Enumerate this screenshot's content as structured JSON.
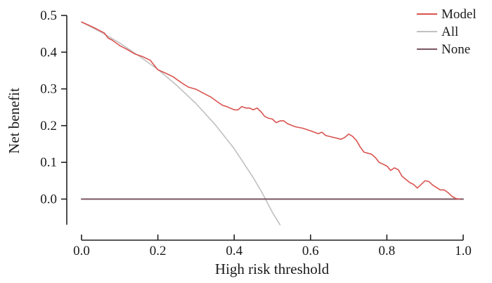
{
  "chart_data": {
    "type": "line",
    "title": "",
    "xlabel": "High risk threshold",
    "ylabel": "Net benefit",
    "xlim": [
      0.0,
      1.0
    ],
    "ylim": [
      -0.07,
      0.5
    ],
    "xticks": [
      "0.0",
      "0.2",
      "0.4",
      "0.6",
      "0.8",
      "1.0"
    ],
    "yticks": [
      "0.0",
      "0.1",
      "0.2",
      "0.3",
      "0.4",
      "0.5"
    ],
    "legend": {
      "placement": "top-right",
      "entries": [
        "Model",
        "All",
        "None"
      ]
    },
    "grid": false,
    "series": [
      {
        "name": "Model",
        "color": "#d9534f",
        "x": [
          0.0,
          0.02,
          0.04,
          0.06,
          0.07,
          0.08,
          0.1,
          0.12,
          0.14,
          0.16,
          0.18,
          0.2,
          0.22,
          0.24,
          0.26,
          0.28,
          0.3,
          0.32,
          0.34,
          0.36,
          0.37,
          0.38,
          0.4,
          0.41,
          0.42,
          0.43,
          0.44,
          0.45,
          0.46,
          0.47,
          0.48,
          0.49,
          0.5,
          0.51,
          0.52,
          0.53,
          0.54,
          0.56,
          0.58,
          0.6,
          0.62,
          0.63,
          0.64,
          0.66,
          0.68,
          0.69,
          0.7,
          0.71,
          0.72,
          0.73,
          0.74,
          0.76,
          0.77,
          0.78,
          0.8,
          0.81,
          0.82,
          0.83,
          0.84,
          0.86,
          0.87,
          0.88,
          0.89,
          0.9,
          0.91,
          0.92,
          0.94,
          0.95,
          0.96,
          0.97,
          0.98,
          0.99
        ],
        "y": [
          0.482,
          0.473,
          0.463,
          0.452,
          0.438,
          0.433,
          0.418,
          0.407,
          0.395,
          0.388,
          0.378,
          0.352,
          0.343,
          0.333,
          0.318,
          0.305,
          0.299,
          0.288,
          0.277,
          0.262,
          0.255,
          0.252,
          0.243,
          0.243,
          0.252,
          0.248,
          0.248,
          0.243,
          0.248,
          0.238,
          0.225,
          0.22,
          0.218,
          0.208,
          0.213,
          0.213,
          0.205,
          0.197,
          0.193,
          0.186,
          0.178,
          0.182,
          0.173,
          0.168,
          0.163,
          0.168,
          0.177,
          0.171,
          0.16,
          0.142,
          0.128,
          0.122,
          0.113,
          0.1,
          0.09,
          0.078,
          0.085,
          0.08,
          0.062,
          0.045,
          0.04,
          0.03,
          0.04,
          0.05,
          0.048,
          0.038,
          0.025,
          0.025,
          0.018,
          0.008,
          0.002,
          0.0
        ]
      },
      {
        "name": "All",
        "color": "#c0c0c0",
        "x": [
          0.0,
          0.05,
          0.1,
          0.15,
          0.2,
          0.25,
          0.3,
          0.35,
          0.4,
          0.43,
          0.45,
          0.47,
          0.48,
          0.5,
          0.52
        ],
        "y": [
          0.482,
          0.455,
          0.425,
          0.39,
          0.353,
          0.309,
          0.26,
          0.203,
          0.137,
          0.09,
          0.058,
          0.023,
          0.004,
          -0.036,
          -0.07
        ]
      },
      {
        "name": "None",
        "color": "#7a5561",
        "x": [
          0.0,
          1.0
        ],
        "y": [
          0.0,
          0.0
        ]
      }
    ]
  }
}
